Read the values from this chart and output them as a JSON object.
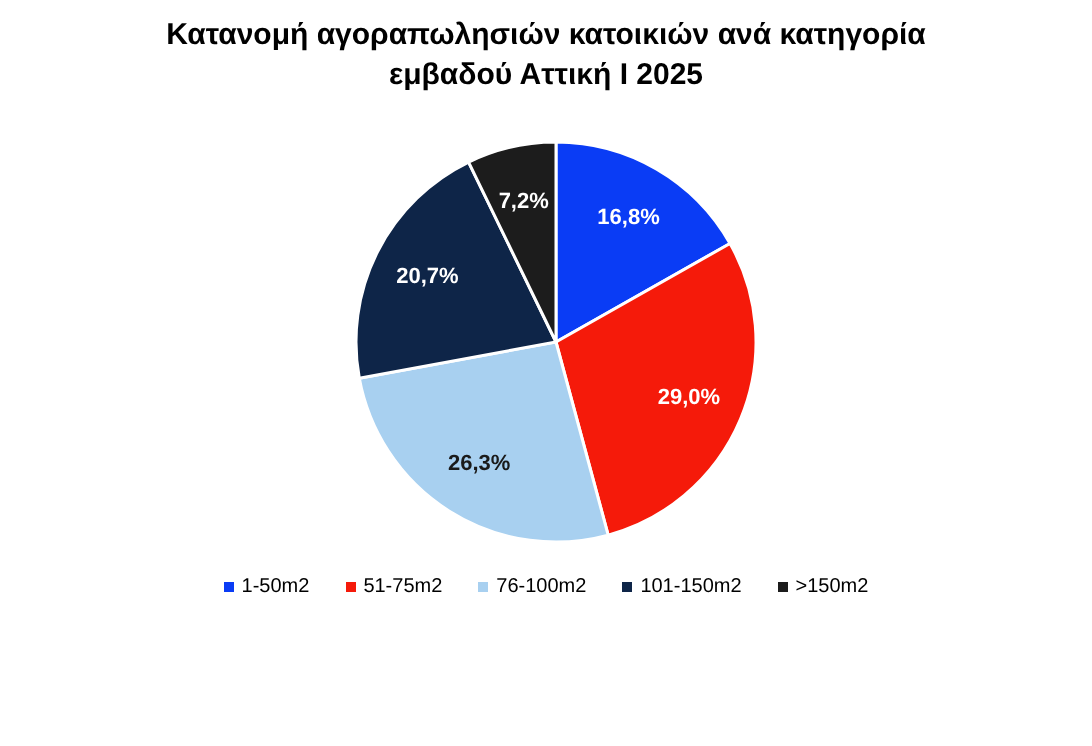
{
  "chart_data": {
    "type": "pie",
    "title": "Κατανομή αγοραπωλησιών κατοικιών ανά κατηγορία εμβαδού Αττική Ι 2025",
    "categories": [
      "1-50m2",
      "51-75m2",
      "76-100m2",
      "101-150m2",
      ">150m2"
    ],
    "values": [
      16.8,
      29.0,
      26.3,
      20.7,
      7.2
    ],
    "value_labels": [
      "16,8%",
      "29,0%",
      "26,3%",
      "20,7%",
      "7,2%"
    ],
    "colors": [
      "#0a3cf5",
      "#f51a0a",
      "#a8d0f0",
      "#0e2548",
      "#1c1c1c"
    ],
    "legend": "bottom"
  }
}
